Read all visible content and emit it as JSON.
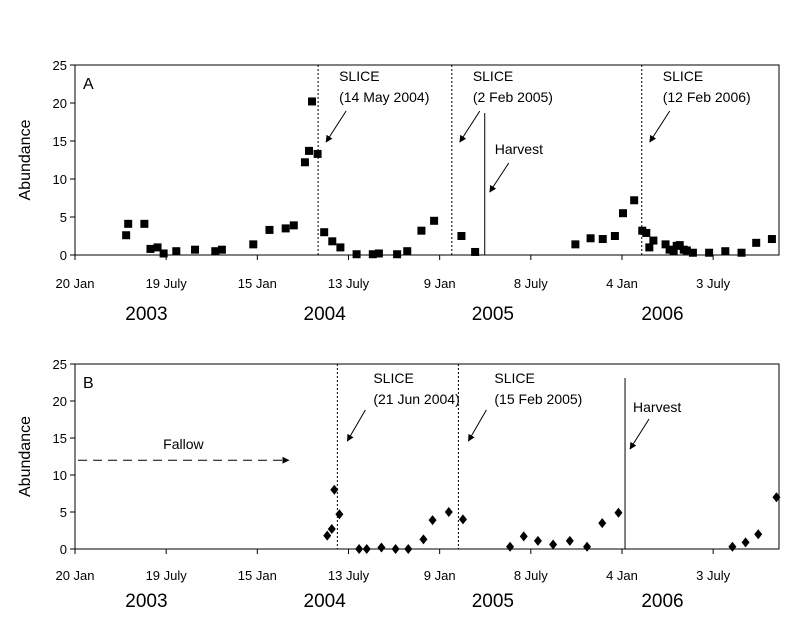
{
  "chart_data": [
    {
      "type": "scatter",
      "panel_label": "A",
      "ylabel": "Abundance",
      "ylim": [
        0,
        25
      ],
      "yticks": [
        0,
        5,
        10,
        15,
        20,
        25
      ],
      "xlim": [
        "2003-01-20",
        "2006-11-10"
      ],
      "xticks": [
        {
          "date": "2003-01-20",
          "label": "20 Jan"
        },
        {
          "date": "2003-07-19",
          "label": "19 July"
        },
        {
          "date": "2004-01-15",
          "label": "15 Jan"
        },
        {
          "date": "2004-07-13",
          "label": "13 July"
        },
        {
          "date": "2005-01-09",
          "label": "9 Jan"
        },
        {
          "date": "2005-07-08",
          "label": "8 July"
        },
        {
          "date": "2006-01-04",
          "label": "4 Jan"
        },
        {
          "date": "2006-07-03",
          "label": "3 July"
        }
      ],
      "years": [
        {
          "date": "2003-06-10",
          "label": "2003"
        },
        {
          "date": "2004-05-27",
          "label": "2004"
        },
        {
          "date": "2005-04-24",
          "label": "2005"
        },
        {
          "date": "2006-03-25",
          "label": "2006"
        }
      ],
      "marker": "square",
      "grid": false,
      "points": [
        {
          "x": "2003-05-01",
          "y": 2.6
        },
        {
          "x": "2003-05-05",
          "y": 4.1
        },
        {
          "x": "2003-06-06",
          "y": 4.1
        },
        {
          "x": "2003-06-18",
          "y": 0.8
        },
        {
          "x": "2003-07-02",
          "y": 1.0
        },
        {
          "x": "2003-07-14",
          "y": 0.2
        },
        {
          "x": "2003-08-08",
          "y": 0.5
        },
        {
          "x": "2003-09-14",
          "y": 0.7
        },
        {
          "x": "2003-10-24",
          "y": 0.5
        },
        {
          "x": "2003-11-06",
          "y": 0.7
        },
        {
          "x": "2004-01-07",
          "y": 1.4
        },
        {
          "x": "2004-02-08",
          "y": 3.3
        },
        {
          "x": "2004-03-11",
          "y": 3.5
        },
        {
          "x": "2004-03-27",
          "y": 3.9
        },
        {
          "x": "2004-04-18",
          "y": 12.2
        },
        {
          "x": "2004-04-26",
          "y": 13.7
        },
        {
          "x": "2004-05-02",
          "y": 20.2
        },
        {
          "x": "2004-05-13",
          "y": 13.3
        },
        {
          "x": "2004-05-26",
          "y": 3.0
        },
        {
          "x": "2004-06-11",
          "y": 1.8
        },
        {
          "x": "2004-06-27",
          "y": 1.0
        },
        {
          "x": "2004-07-29",
          "y": 0.1
        },
        {
          "x": "2004-08-30",
          "y": 0.1
        },
        {
          "x": "2004-09-11",
          "y": 0.2
        },
        {
          "x": "2004-10-17",
          "y": 0.1
        },
        {
          "x": "2004-11-06",
          "y": 0.5
        },
        {
          "x": "2004-12-04",
          "y": 3.2
        },
        {
          "x": "2004-12-29",
          "y": 4.5
        },
        {
          "x": "2005-02-21",
          "y": 2.5
        },
        {
          "x": "2005-03-20",
          "y": 0.4
        },
        {
          "x": "2005-10-04",
          "y": 1.4
        },
        {
          "x": "2005-11-03",
          "y": 2.2
        },
        {
          "x": "2005-11-27",
          "y": 2.1
        },
        {
          "x": "2005-12-21",
          "y": 2.5
        },
        {
          "x": "2006-01-06",
          "y": 5.5
        },
        {
          "x": "2006-01-28",
          "y": 7.2
        },
        {
          "x": "2006-02-13",
          "y": 3.2
        },
        {
          "x": "2006-02-21",
          "y": 2.9
        },
        {
          "x": "2006-02-27",
          "y": 1.0
        },
        {
          "x": "2006-03-07",
          "y": 1.9
        },
        {
          "x": "2006-03-31",
          "y": 1.4
        },
        {
          "x": "2006-04-08",
          "y": 0.7
        },
        {
          "x": "2006-04-16",
          "y": 0.5
        },
        {
          "x": "2006-04-22",
          "y": 1.2
        },
        {
          "x": "2006-04-28",
          "y": 1.3
        },
        {
          "x": "2006-05-06",
          "y": 0.7
        },
        {
          "x": "2006-05-12",
          "y": 0.6
        },
        {
          "x": "2006-05-24",
          "y": 0.3
        },
        {
          "x": "2006-06-25",
          "y": 0.3
        },
        {
          "x": "2006-07-27",
          "y": 0.5
        },
        {
          "x": "2006-08-28",
          "y": 0.3
        },
        {
          "x": "2006-09-26",
          "y": 1.6
        },
        {
          "x": "2006-10-27",
          "y": 2.1
        }
      ],
      "events": [
        {
          "kind": "slice",
          "date": "2004-05-14",
          "lines": [
            "SLICE",
            "(14 May 2004)"
          ]
        },
        {
          "kind": "slice",
          "date": "2005-02-02",
          "lines": [
            "SLICE",
            "(2 Feb 2005)"
          ]
        },
        {
          "kind": "harvest",
          "date": "2005-04-08",
          "lines": [
            "Harvest"
          ]
        },
        {
          "kind": "slice",
          "date": "2006-02-12",
          "lines": [
            "SLICE",
            "(12 Feb 2006)"
          ]
        }
      ]
    },
    {
      "type": "scatter",
      "panel_label": "B",
      "ylabel": "Abundance",
      "ylim": [
        0,
        25
      ],
      "yticks": [
        0,
        5,
        10,
        15,
        20,
        25
      ],
      "xlim": [
        "2003-01-20",
        "2006-11-10"
      ],
      "xticks": [
        {
          "date": "2003-01-20",
          "label": "20 Jan"
        },
        {
          "date": "2003-07-19",
          "label": "19 July"
        },
        {
          "date": "2004-01-15",
          "label": "15 Jan"
        },
        {
          "date": "2004-07-13",
          "label": "13 July"
        },
        {
          "date": "2005-01-09",
          "label": "9 Jan"
        },
        {
          "date": "2005-07-08",
          "label": "8 July"
        },
        {
          "date": "2006-01-04",
          "label": "4 Jan"
        },
        {
          "date": "2006-07-03",
          "label": "3 July"
        }
      ],
      "years": [
        {
          "date": "2003-06-10",
          "label": "2003"
        },
        {
          "date": "2004-05-27",
          "label": "2004"
        },
        {
          "date": "2005-04-24",
          "label": "2005"
        },
        {
          "date": "2006-03-25",
          "label": "2006"
        }
      ],
      "marker": "diamond",
      "grid": false,
      "points": [
        {
          "x": "2004-06-01",
          "y": 1.8
        },
        {
          "x": "2004-06-10",
          "y": 2.7
        },
        {
          "x": "2004-06-15",
          "y": 8.0
        },
        {
          "x": "2004-06-25",
          "y": 4.7
        },
        {
          "x": "2004-08-03",
          "y": 0.0
        },
        {
          "x": "2004-08-18",
          "y": 0.0
        },
        {
          "x": "2004-09-16",
          "y": 0.2
        },
        {
          "x": "2004-10-14",
          "y": 0.0
        },
        {
          "x": "2004-11-08",
          "y": 0.0
        },
        {
          "x": "2004-12-08",
          "y": 1.3
        },
        {
          "x": "2004-12-26",
          "y": 3.9
        },
        {
          "x": "2005-01-27",
          "y": 5.0
        },
        {
          "x": "2005-02-24",
          "y": 4.0
        },
        {
          "x": "2005-05-28",
          "y": 0.3
        },
        {
          "x": "2005-06-24",
          "y": 1.7
        },
        {
          "x": "2005-07-22",
          "y": 1.1
        },
        {
          "x": "2005-08-21",
          "y": 0.6
        },
        {
          "x": "2005-09-23",
          "y": 1.1
        },
        {
          "x": "2005-10-27",
          "y": 0.3
        },
        {
          "x": "2005-11-26",
          "y": 3.5
        },
        {
          "x": "2005-12-28",
          "y": 4.9
        },
        {
          "x": "2006-08-10",
          "y": 0.3
        },
        {
          "x": "2006-09-05",
          "y": 0.9
        },
        {
          "x": "2006-09-30",
          "y": 2.0
        },
        {
          "x": "2006-11-05",
          "y": 7.0
        }
      ],
      "events": [
        {
          "kind": "slice",
          "date": "2004-06-21",
          "lines": [
            "SLICE",
            "(21 Jun 2004)"
          ]
        },
        {
          "kind": "slice",
          "date": "2005-02-15",
          "lines": [
            "SLICE",
            "(15 Feb 2005)"
          ]
        },
        {
          "kind": "harvest",
          "date": "2006-01-10",
          "lines": [
            "Harvest"
          ]
        }
      ],
      "fallow": {
        "label": "Fallow",
        "from": "2003-01-26",
        "to": "2004-03-17",
        "y": 12
      }
    }
  ]
}
